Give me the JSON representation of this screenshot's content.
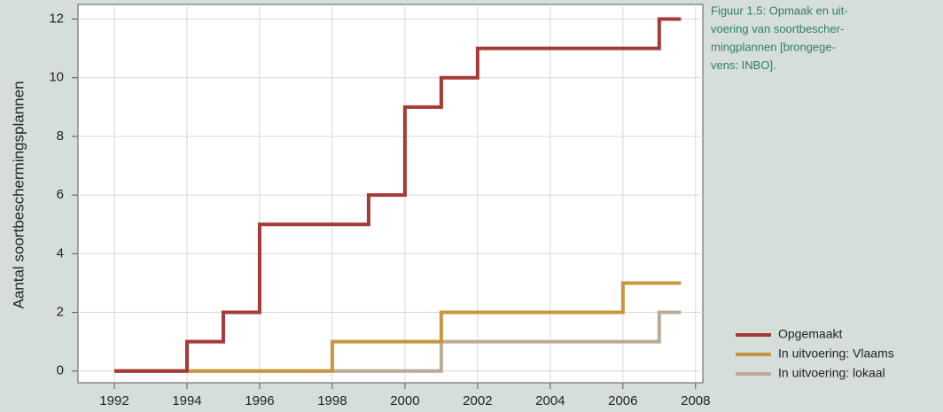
{
  "chart_data": {
    "type": "step",
    "y_label": "Aantal soortbeschermingsplannen",
    "caption": [
      "Figuur 1.5: Opmaak en uit-",
      "voering van soortbescher-",
      "mingplannen [brongege-",
      "vens: INBO]."
    ],
    "xlim": [
      1991,
      2008.2
    ],
    "xticks": [
      1992,
      1994,
      1996,
      1998,
      2000,
      2002,
      2004,
      2006,
      2008
    ],
    "ylim": [
      -0.4,
      12.5
    ],
    "yticks": [
      0,
      2,
      4,
      6,
      8,
      10,
      12
    ],
    "grid": true,
    "legend": "lower right",
    "series": [
      {
        "name": "Opgemaakt",
        "color": "#a53a36",
        "x": [
          1992,
          1994,
          1995,
          1996,
          1998,
          1999,
          2000,
          2001,
          2002,
          2004,
          2006,
          2007,
          2007.6
        ],
        "values": [
          0,
          1,
          2,
          5,
          5,
          6,
          9,
          10,
          11,
          11,
          11,
          12,
          12
        ]
      },
      {
        "name": "In uitvoering: Vlaams",
        "color": "#c8963e",
        "x": [
          1992,
          1998,
          1999,
          2001,
          2006,
          2007.6
        ],
        "values": [
          0,
          1,
          1,
          2,
          3,
          3
        ]
      },
      {
        "name": "In uitvoering: lokaal",
        "color": "#b9ab98",
        "x": [
          1992,
          2001,
          2007,
          2007.6
        ],
        "values": [
          0,
          1,
          2,
          2
        ]
      }
    ]
  }
}
